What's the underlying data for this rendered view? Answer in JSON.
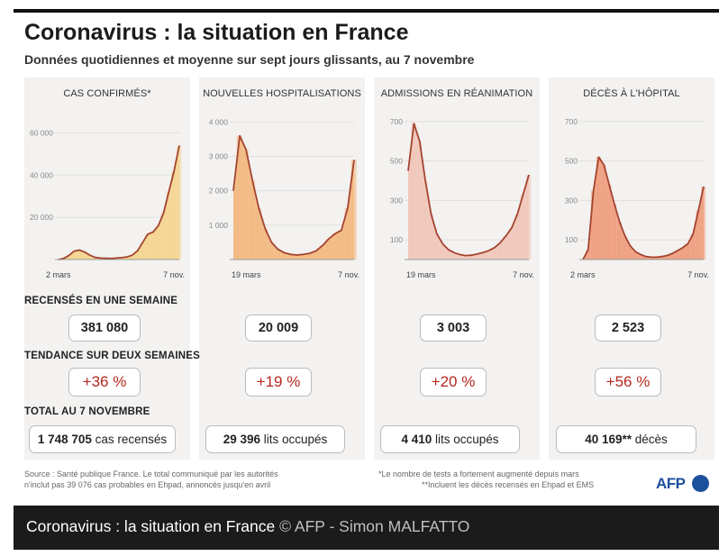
{
  "header": {
    "title": "Coronavirus : la situation en France",
    "subtitle": "Données quotidiennes et moyenne sur sept jours glissants, au 7 novembre"
  },
  "row_labels": {
    "week": "RECENSÉS EN UNE SEMAINE",
    "trend": "TENDANCE SUR DEUX SEMAINES",
    "total": "TOTAL AU 7 NOVEMBRE"
  },
  "panels": [
    {
      "title": "CAS CONFIRMÉS*",
      "week": "381 080",
      "trend": "+36 %",
      "total_num": "1 748 705",
      "total_unit": " cas recensés"
    },
    {
      "title": "NOUVELLES HOSPITALISATIONS",
      "week": "20 009",
      "trend": "+19 %",
      "total_num": "29 396",
      "total_unit": " lits occupés"
    },
    {
      "title": "ADMISSIONS EN RÉANIMATION",
      "week": "3 003",
      "trend": "+20 %",
      "total_num": "4 410",
      "total_unit": " lits occupés"
    },
    {
      "title": "DÉCÈS À L'HÔPITAL",
      "week": "2 523",
      "trend": "+56 %",
      "total_num": "40 169**",
      "total_unit": " décès"
    }
  ],
  "footer": {
    "source_line1": "Source : Santé publique France. Le total communiqué par les autorités",
    "source_line2": "n'inclut pas 39 076 cas probables en Ehpad, annoncés jusqu'en avril",
    "note_line1": "*Le nombre de tests a fortement augmenté depuis mars",
    "note_line2": "**Incluent les décès recensés en Ehpad et EMS",
    "logo": "AFP"
  },
  "caption": {
    "title": "Coronavirus : la situation en France",
    "credit": " © AFP - Simon MALFATTO"
  },
  "colors": {
    "line": "#a4442f",
    "fill_cases": "#f4d48e",
    "fill_hosp": "#f2b77e",
    "fill_rea": "#f0c6b8",
    "fill_deaths": "#ee9c7c",
    "trend_text": "#b5271f",
    "logo": "#1d4f9c"
  },
  "chart_data": [
    {
      "type": "area",
      "title": "CAS CONFIRMÉS*",
      "x_labels": [
        "2 mars",
        "7 nov."
      ],
      "yticks": [
        20000,
        40000,
        60000
      ],
      "ytick_labels": [
        "20 000",
        "40 000",
        "60 000"
      ],
      "ylim": [
        0,
        70000
      ],
      "fill": "#f4d48e",
      "series": [
        {
          "values": [
            0,
            500,
            2000,
            4000,
            4500,
            3500,
            2000,
            1000,
            700,
            600,
            500,
            700,
            900,
            1200,
            2000,
            4000,
            8000,
            12000,
            13000,
            16000,
            22000,
            32000,
            42000,
            54000
          ]
        }
      ]
    },
    {
      "type": "area",
      "title": "NOUVELLES HOSPITALISATIONS",
      "x_labels": [
        "19 mars",
        "7 nov."
      ],
      "yticks": [
        1000,
        2000,
        3000,
        4000
      ],
      "ytick_labels": [
        "1 000",
        "2 000",
        "3 000",
        "4 000"
      ],
      "ylim": [
        0,
        4300
      ],
      "fill": "#f2b77e",
      "series": [
        {
          "values": [
            2000,
            3600,
            3200,
            2300,
            1500,
            900,
            500,
            300,
            200,
            150,
            130,
            150,
            180,
            250,
            400,
            600,
            750,
            850,
            1500,
            2900
          ]
        }
      ]
    },
    {
      "type": "area",
      "title": "ADMISSIONS EN RÉANIMATION",
      "x_labels": [
        "19 mars",
        "7 nov."
      ],
      "yticks": [
        100,
        300,
        500,
        700
      ],
      "ytick_labels": [
        "100",
        "300",
        "500",
        "700"
      ],
      "ylim": [
        0,
        750
      ],
      "fill": "#f0c6b8",
      "series": [
        {
          "values": [
            450,
            690,
            600,
            400,
            230,
            130,
            80,
            50,
            35,
            25,
            20,
            22,
            28,
            35,
            45,
            60,
            85,
            120,
            160,
            230,
            330,
            430
          ]
        }
      ]
    },
    {
      "type": "area",
      "title": "DÉCÈS À L'HÔPITAL",
      "x_labels": [
        "2 mars",
        "7 nov."
      ],
      "yticks": [
        100,
        300,
        500,
        700
      ],
      "ytick_labels": [
        "100",
        "300",
        "500",
        "700"
      ],
      "ylim": [
        0,
        750
      ],
      "fill": "#ee9c7c",
      "series": [
        {
          "values": [
            0,
            50,
            350,
            520,
            480,
            380,
            280,
            190,
            120,
            70,
            40,
            25,
            15,
            12,
            12,
            15,
            20,
            30,
            45,
            60,
            80,
            130,
            250,
            370
          ]
        }
      ]
    }
  ]
}
